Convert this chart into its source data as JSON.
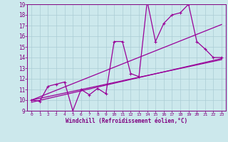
{
  "bg_color": "#cce8ec",
  "grid_color": "#aaccd4",
  "line_color": "#990099",
  "xlabel": "Windchill (Refroidissement éolien,°C)",
  "tick_color": "#800080",
  "xlim": [
    -0.5,
    23.5
  ],
  "ylim": [
    9,
    19
  ],
  "xticks": [
    0,
    1,
    2,
    3,
    4,
    5,
    6,
    7,
    8,
    9,
    10,
    11,
    12,
    13,
    14,
    15,
    16,
    17,
    18,
    19,
    20,
    21,
    22,
    23
  ],
  "yticks": [
    9,
    10,
    11,
    12,
    13,
    14,
    15,
    16,
    17,
    18,
    19
  ],
  "series1_x": [
    0,
    1,
    2,
    3,
    4,
    5,
    6,
    7,
    8,
    9,
    10,
    11,
    12,
    13,
    14,
    15,
    16,
    17,
    18,
    19,
    20,
    21,
    22,
    23
  ],
  "series1_y": [
    10.0,
    9.9,
    11.3,
    11.5,
    11.7,
    9.0,
    11.0,
    10.5,
    11.1,
    10.6,
    15.5,
    15.5,
    12.5,
    12.2,
    19.3,
    15.5,
    17.2,
    18.0,
    18.2,
    19.0,
    15.5,
    14.8,
    14.0,
    14.0
  ],
  "line2_x": [
    0,
    23
  ],
  "line2_y": [
    10.0,
    13.8
  ],
  "line3_x": [
    0,
    23
  ],
  "line3_y": [
    10.0,
    17.1
  ],
  "line4_x": [
    0,
    23
  ],
  "line4_y": [
    9.8,
    13.9
  ],
  "figsize": [
    3.2,
    2.0
  ],
  "dpi": 100
}
